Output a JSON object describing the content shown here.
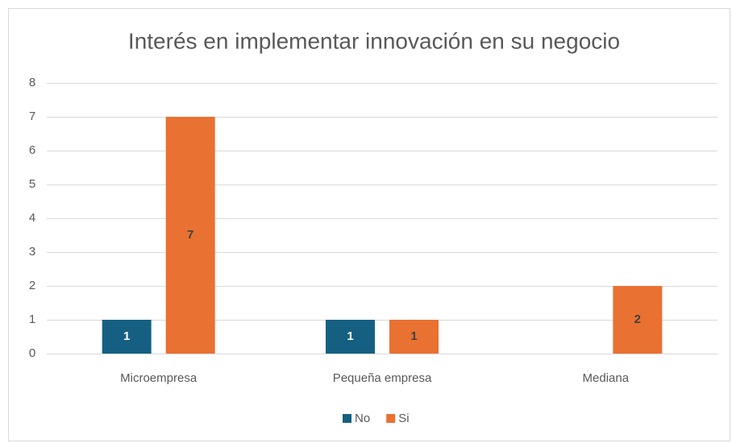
{
  "chart_data": {
    "type": "bar",
    "title": "Interés en implementar innovación en su negocio",
    "categories": [
      "Microempresa",
      "Pequeña empresa",
      "Mediana"
    ],
    "series": [
      {
        "name": "No",
        "color": "#156082",
        "label_color": "#ffffff",
        "values": [
          1,
          1,
          0
        ]
      },
      {
        "name": "Si",
        "color": "#e97132",
        "label_color": "#404040",
        "values": [
          7,
          1,
          2
        ]
      }
    ],
    "ylim": [
      0,
      8
    ],
    "yticks": [
      0,
      1,
      2,
      3,
      4,
      5,
      6,
      7,
      8
    ],
    "grid": true,
    "legend": "bottom"
  }
}
